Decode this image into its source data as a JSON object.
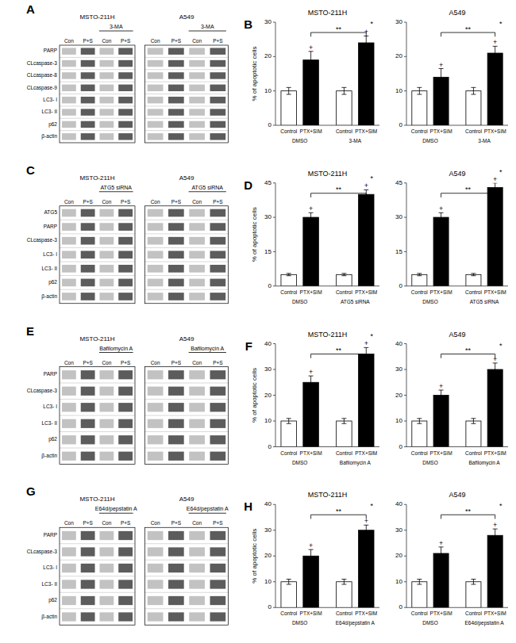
{
  "chart_data": [
    {
      "type": "blot",
      "annotations": {
        "panel": "A",
        "treatment": "3-MA"
      },
      "groups": [
        "MSTO-211H",
        "A549"
      ],
      "columns": [
        "Con",
        "P+S",
        "Con",
        "P+S"
      ],
      "categories": [
        "PARP",
        "CLcaspase-3",
        "CLcaspase-8",
        "CLcaspase-9",
        "LC3- I",
        "LC3- II",
        "p62",
        "β-actin"
      ]
    },
    {
      "type": "bar",
      "title": "MSTO-211H",
      "ylabel": "% of apoptotic cells",
      "categories": [
        "Control",
        "PTX+SIM",
        "Control",
        "PTX+SIM"
      ],
      "values": [
        10,
        19,
        10,
        24
      ],
      "errors": [
        1.0,
        2.5,
        1.0,
        2.0
      ],
      "colors": [
        "white",
        "black",
        "white",
        "black"
      ],
      "ylim": [
        0,
        30
      ],
      "yticks": [
        0,
        10,
        20,
        30
      ],
      "annotations": {
        "panel": "B",
        "groups": [
          "DMSO",
          "3-MA"
        ],
        "markers": [
          "+",
          "+"
        ],
        "significance": [
          "**",
          "*"
        ]
      }
    },
    {
      "type": "bar",
      "title": "A549",
      "categories": [
        "Control",
        "PTX+SIM",
        "Control",
        "PTX+SIM"
      ],
      "values": [
        10,
        14,
        10,
        21
      ],
      "errors": [
        1.0,
        2.5,
        1.0,
        2.0
      ],
      "colors": [
        "white",
        "black",
        "white",
        "black"
      ],
      "ylim": [
        0,
        30
      ],
      "yticks": [
        0,
        10,
        20,
        30
      ],
      "annotations": {
        "groups": [
          "DMSO",
          "3-MA"
        ],
        "markers": [
          "+",
          "+"
        ],
        "significance": [
          "**",
          "*"
        ]
      }
    },
    {
      "type": "blot",
      "annotations": {
        "panel": "C",
        "treatment": "ATG5 siRNA"
      },
      "groups": [
        "MSTO-211H",
        "A549"
      ],
      "columns": [
        "Con",
        "P+S",
        "Con",
        "P+S"
      ],
      "categories": [
        "ATG5",
        "PARP",
        "CLcaspase-3",
        "LC3- I",
        "LC3- II",
        "p62",
        "β-actin"
      ]
    },
    {
      "type": "bar",
      "title": "MSTO-211H",
      "ylabel": "% of apoptotic cells",
      "categories": [
        "Control",
        "PTX+SIM",
        "Control",
        "PTX+SIM"
      ],
      "values": [
        5,
        30,
        5,
        40
      ],
      "errors": [
        0.5,
        2.0,
        0.5,
        2.0
      ],
      "colors": [
        "white",
        "black",
        "white",
        "black"
      ],
      "ylim": [
        0,
        45
      ],
      "yticks": [
        0,
        15,
        30,
        45
      ],
      "annotations": {
        "panel": "D",
        "groups": [
          "DMSO",
          "ATG5 siRNA"
        ],
        "markers": [
          "+",
          "+"
        ],
        "significance": [
          "**",
          "*"
        ]
      }
    },
    {
      "type": "bar",
      "title": "A549",
      "categories": [
        "Control",
        "PTX+SIM",
        "Control",
        "PTX+SIM"
      ],
      "values": [
        5,
        30,
        5,
        43
      ],
      "errors": [
        0.5,
        2.0,
        0.5,
        2.0
      ],
      "colors": [
        "white",
        "black",
        "white",
        "black"
      ],
      "ylim": [
        0,
        45
      ],
      "yticks": [
        0,
        15,
        30,
        45
      ],
      "annotations": {
        "groups": [
          "DMSO",
          "ATG5 siRNA"
        ],
        "markers": [
          "+",
          "+"
        ],
        "significance": [
          "**",
          "*"
        ]
      }
    },
    {
      "type": "blot",
      "annotations": {
        "panel": "E",
        "treatment": "Bafilomycin A"
      },
      "groups": [
        "MSTO-211H",
        "A549"
      ],
      "columns": [
        "Con",
        "P+S",
        "Con",
        "P+S"
      ],
      "categories": [
        "PARP",
        "CLcaspase-3",
        "LC3- I",
        "LC3- II",
        "p62",
        "β-actin"
      ]
    },
    {
      "type": "bar",
      "title": "MSTO-211H",
      "ylabel": "% of apoptotic cells",
      "categories": [
        "Control",
        "PTX+SIM",
        "Control",
        "PTX+SIM"
      ],
      "values": [
        10,
        25,
        10,
        36
      ],
      "errors": [
        1.0,
        2.5,
        1.0,
        2.5
      ],
      "colors": [
        "white",
        "black",
        "white",
        "black"
      ],
      "ylim": [
        0,
        40
      ],
      "yticks": [
        0,
        10,
        20,
        30,
        40
      ],
      "annotations": {
        "panel": "F",
        "groups": [
          "DMSO",
          "Bafilomycin A"
        ],
        "markers": [
          "+",
          "+"
        ],
        "significance": [
          "**",
          "*"
        ]
      }
    },
    {
      "type": "bar",
      "title": "A549",
      "categories": [
        "Control",
        "PTX+SIM",
        "Control",
        "PTX+SIM"
      ],
      "values": [
        10,
        20,
        10,
        30
      ],
      "errors": [
        1.0,
        2.0,
        1.0,
        2.5
      ],
      "colors": [
        "white",
        "black",
        "white",
        "black"
      ],
      "ylim": [
        0,
        40
      ],
      "yticks": [
        0,
        10,
        20,
        30,
        40
      ],
      "annotations": {
        "groups": [
          "DMSO",
          "Bafilomycin A"
        ],
        "markers": [
          "+",
          "+"
        ],
        "significance": [
          "**",
          "*"
        ]
      }
    },
    {
      "type": "blot",
      "annotations": {
        "panel": "G",
        "treatment": "E64d/pepstatin A"
      },
      "groups": [
        "MSTO-211H",
        "A549"
      ],
      "columns": [
        "Con",
        "P+S",
        "Con",
        "P+S"
      ],
      "categories": [
        "PARP",
        "CLcaspase-3",
        "LC3- I",
        "LC3- II",
        "p62",
        "β-actin"
      ]
    },
    {
      "type": "bar",
      "title": "MSTO-211H",
      "ylabel": "% of apoptotic cells",
      "categories": [
        "Control",
        "PTX+SIM",
        "Control",
        "PTX+SIM"
      ],
      "values": [
        10,
        20,
        10,
        30
      ],
      "errors": [
        1.0,
        2.5,
        1.0,
        2.0
      ],
      "colors": [
        "white",
        "black",
        "white",
        "black"
      ],
      "ylim": [
        0,
        40
      ],
      "yticks": [
        0,
        10,
        20,
        30,
        40
      ],
      "annotations": {
        "panel": "H",
        "groups": [
          "DMSO",
          "E64d/pepstatin A"
        ],
        "markers": [
          "+",
          "+"
        ],
        "significance": [
          "**",
          "*"
        ]
      }
    },
    {
      "type": "bar",
      "title": "A549",
      "categories": [
        "Control",
        "PTX+SIM",
        "Control",
        "PTX+SIM"
      ],
      "values": [
        10,
        21,
        10,
        28
      ],
      "errors": [
        1.0,
        2.5,
        1.0,
        2.5
      ],
      "colors": [
        "white",
        "black",
        "white",
        "black"
      ],
      "ylim": [
        0,
        40
      ],
      "yticks": [
        0,
        10,
        20,
        30,
        40
      ],
      "annotations": {
        "groups": [
          "DMSO",
          "E64d/pepstatin A"
        ],
        "markers": [
          "+",
          "+"
        ],
        "significance": [
          "**",
          "*"
        ]
      }
    }
  ]
}
